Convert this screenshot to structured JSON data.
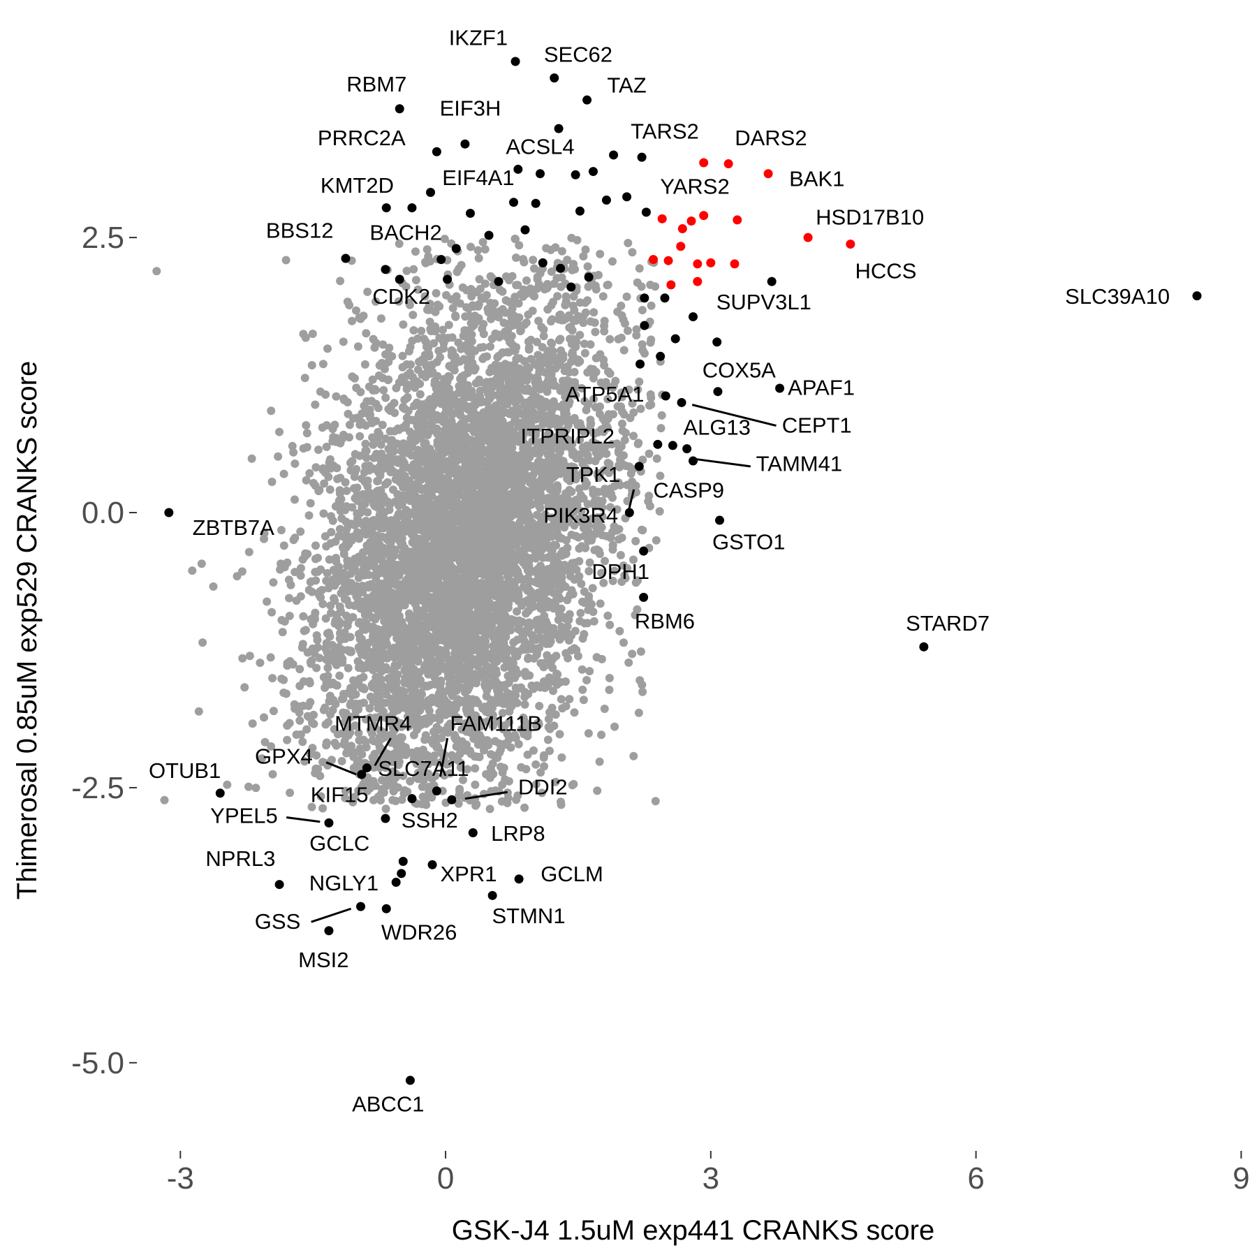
{
  "chart_data": {
    "type": "scatter",
    "xlabel": "GSK-J4 1.5uM exp441 CRANKS score",
    "ylabel": "Thimerosal 0.85uM exp529 CRANKS score",
    "xlim": [
      -3.5,
      9.1
    ],
    "ylim": [
      -5.75,
      4.5
    ],
    "x_ticks": [
      -3,
      0,
      3,
      6,
      9
    ],
    "x_tick_labels": [
      "-3",
      "0",
      "3",
      "6",
      "9"
    ],
    "y_ticks": [
      2.5,
      0.0,
      -2.5,
      -5.0
    ],
    "y_tick_labels": [
      "2.5",
      "0.0",
      "-2.5",
      "-5.0"
    ],
    "grid": false,
    "colors": {
      "background": "#4d4d4d",
      "highlight": "#000000",
      "selected": "#ff0000"
    },
    "background_cloud": {
      "color": "#9e9e9e",
      "description_points": 6000,
      "center": [
        0.2,
        -0.3
      ],
      "spread": [
        0.85,
        1.2
      ],
      "correlation": 0.35
    },
    "selected_points": [
      {
        "x": 2.92,
        "y": 3.18
      },
      {
        "x": 3.2,
        "y": 3.17
      },
      {
        "x": 3.65,
        "y": 3.08
      },
      {
        "x": 4.1,
        "y": 2.5
      },
      {
        "x": 4.58,
        "y": 2.44
      },
      {
        "x": 2.45,
        "y": 2.67
      },
      {
        "x": 2.68,
        "y": 2.58
      },
      {
        "x": 2.78,
        "y": 2.65
      },
      {
        "x": 2.92,
        "y": 2.7
      },
      {
        "x": 3.3,
        "y": 2.66
      },
      {
        "x": 2.66,
        "y": 2.42
      },
      {
        "x": 2.35,
        "y": 2.3
      },
      {
        "x": 2.52,
        "y": 2.29
      },
      {
        "x": 2.85,
        "y": 2.26
      },
      {
        "x": 3.0,
        "y": 2.27
      },
      {
        "x": 3.27,
        "y": 2.26
      },
      {
        "x": 2.55,
        "y": 2.07
      },
      {
        "x": 2.85,
        "y": 2.1
      }
    ],
    "highlight_points": [
      {
        "x": 0.79,
        "y": 4.1
      },
      {
        "x": 1.23,
        "y": 3.95
      },
      {
        "x": 1.6,
        "y": 3.75
      },
      {
        "x": -0.52,
        "y": 3.67
      },
      {
        "x": 1.28,
        "y": 3.49
      },
      {
        "x": 0.22,
        "y": 3.35
      },
      {
        "x": -0.1,
        "y": 3.28
      },
      {
        "x": 1.9,
        "y": 3.25
      },
      {
        "x": 2.22,
        "y": 3.23
      },
      {
        "x": 0.82,
        "y": 3.12
      },
      {
        "x": 1.07,
        "y": 3.08
      },
      {
        "x": 1.47,
        "y": 3.07
      },
      {
        "x": 1.67,
        "y": 3.1
      },
      {
        "x": -0.17,
        "y": 2.91
      },
      {
        "x": -0.67,
        "y": 2.77
      },
      {
        "x": -0.38,
        "y": 2.77
      },
      {
        "x": 0.28,
        "y": 2.72
      },
      {
        "x": 0.77,
        "y": 2.82
      },
      {
        "x": 1.02,
        "y": 2.81
      },
      {
        "x": 1.52,
        "y": 2.74
      },
      {
        "x": 2.27,
        "y": 2.73
      },
      {
        "x": 1.82,
        "y": 2.84
      },
      {
        "x": 2.05,
        "y": 2.87
      },
      {
        "x": -1.13,
        "y": 2.31
      },
      {
        "x": -0.68,
        "y": 2.21
      },
      {
        "x": -0.52,
        "y": 2.12
      },
      {
        "x": -0.05,
        "y": 2.3
      },
      {
        "x": 0.12,
        "y": 2.4
      },
      {
        "x": 0.49,
        "y": 2.52
      },
      {
        "x": 0.9,
        "y": 2.57
      },
      {
        "x": 0.02,
        "y": 2.12
      },
      {
        "x": 0.6,
        "y": 2.1
      },
      {
        "x": 1.1,
        "y": 2.27
      },
      {
        "x": 1.3,
        "y": 2.22
      },
      {
        "x": 1.42,
        "y": 2.05
      },
      {
        "x": 1.62,
        "y": 2.14
      },
      {
        "x": 2.25,
        "y": 1.95
      },
      {
        "x": 3.69,
        "y": 2.1
      },
      {
        "x": 2.48,
        "y": 1.95
      },
      {
        "x": 2.8,
        "y": 1.78
      },
      {
        "x": 3.07,
        "y": 1.55
      },
      {
        "x": 2.25,
        "y": 1.7
      },
      {
        "x": 2.6,
        "y": 1.58
      },
      {
        "x": 2.43,
        "y": 1.42
      },
      {
        "x": 2.2,
        "y": 1.35
      },
      {
        "x": 3.08,
        "y": 1.1
      },
      {
        "x": 3.78,
        "y": 1.13
      },
      {
        "x": 2.49,
        "y": 1.06
      },
      {
        "x": 2.67,
        "y": 1.0
      },
      {
        "x": 2.4,
        "y": 0.62
      },
      {
        "x": 2.57,
        "y": 0.61
      },
      {
        "x": 2.73,
        "y": 0.58
      },
      {
        "x": 2.8,
        "y": 0.47
      },
      {
        "x": 2.19,
        "y": 0.42
      },
      {
        "x": 2.08,
        "y": 0.0
      },
      {
        "x": 3.1,
        "y": -0.07
      },
      {
        "x": 2.24,
        "y": -0.35
      },
      {
        "x": 2.24,
        "y": -0.77
      },
      {
        "x": 5.41,
        "y": -1.22
      },
      {
        "x": 8.5,
        "y": 1.97
      },
      {
        "x": -3.13,
        "y": 0.0
      },
      {
        "x": -2.55,
        "y": -2.55
      },
      {
        "x": -1.32,
        "y": -2.82
      },
      {
        "x": -0.68,
        "y": -2.78
      },
      {
        "x": -0.95,
        "y": -2.38
      },
      {
        "x": -0.89,
        "y": -2.32
      },
      {
        "x": -0.38,
        "y": -2.6
      },
      {
        "x": -0.1,
        "y": -2.53
      },
      {
        "x": 0.07,
        "y": -2.61
      },
      {
        "x": 0.31,
        "y": -2.91
      },
      {
        "x": -0.48,
        "y": -3.17
      },
      {
        "x": -0.15,
        "y": -3.2
      },
      {
        "x": -0.5,
        "y": -3.28
      },
      {
        "x": -0.56,
        "y": -3.36
      },
      {
        "x": 0.83,
        "y": -3.33
      },
      {
        "x": 0.53,
        "y": -3.48
      },
      {
        "x": -1.88,
        "y": -3.38
      },
      {
        "x": -0.96,
        "y": -3.58
      },
      {
        "x": -0.67,
        "y": -3.6
      },
      {
        "x": -1.32,
        "y": -3.8
      },
      {
        "x": -0.4,
        "y": -5.16
      }
    ],
    "labels": [
      {
        "text": "IKZF1",
        "x": 0.37,
        "y": 4.3
      },
      {
        "text": "SEC62",
        "x": 1.5,
        "y": 4.15
      },
      {
        "text": "RBM7",
        "x": -0.78,
        "y": 3.88
      },
      {
        "text": "TAZ",
        "x": 2.05,
        "y": 3.87
      },
      {
        "text": "EIF3H",
        "x": 0.28,
        "y": 3.66
      },
      {
        "text": "PRRC2A",
        "x": -0.95,
        "y": 3.39
      },
      {
        "text": "TARS2",
        "x": 2.48,
        "y": 3.45
      },
      {
        "text": "DARS2",
        "x": 3.68,
        "y": 3.39
      },
      {
        "text": "ACSL4",
        "x": 1.07,
        "y": 3.31
      },
      {
        "text": "EIF4A1",
        "x": 0.37,
        "y": 3.03
      },
      {
        "text": "BAK1",
        "x": 4.2,
        "y": 3.02
      },
      {
        "text": "KMT2D",
        "x": -1.0,
        "y": 2.96
      },
      {
        "text": "YARS2",
        "x": 2.82,
        "y": 2.95
      },
      {
        "text": "HSD17B10",
        "x": 4.8,
        "y": 2.67
      },
      {
        "text": "BBS12",
        "x": -1.65,
        "y": 2.55
      },
      {
        "text": "BACH2",
        "x": -0.45,
        "y": 2.53
      },
      {
        "text": "HCCS",
        "x": 4.98,
        "y": 2.18
      },
      {
        "text": "CDK2",
        "x": -0.5,
        "y": 1.95
      },
      {
        "text": "SUPV3L1",
        "x": 3.6,
        "y": 1.9
      },
      {
        "text": "SLC39A10",
        "x": 7.6,
        "y": 1.95
      },
      {
        "text": "COX5A",
        "x": 3.32,
        "y": 1.28
      },
      {
        "text": "APAF1",
        "x": 4.25,
        "y": 1.12
      },
      {
        "text": "ATP5A1",
        "x": 1.8,
        "y": 1.06
      },
      {
        "text": "CEPT1",
        "x": 4.2,
        "y": 0.78
      },
      {
        "text": "ALG13",
        "x": 3.07,
        "y": 0.76
      },
      {
        "text": "ITPRIPL2",
        "x": 1.38,
        "y": 0.68
      },
      {
        "text": "TAMM41",
        "x": 4.0,
        "y": 0.43
      },
      {
        "text": "TPK1",
        "x": 1.67,
        "y": 0.33
      },
      {
        "text": "CASP9",
        "x": 2.75,
        "y": 0.19
      },
      {
        "text": "PIK3R4",
        "x": 1.53,
        "y": -0.04
      },
      {
        "text": "ZBTB7A",
        "x": -2.4,
        "y": -0.15
      },
      {
        "text": "GSTO1",
        "x": 3.43,
        "y": -0.28
      },
      {
        "text": "DPH1",
        "x": 1.98,
        "y": -0.55
      },
      {
        "text": "RBM6",
        "x": 2.48,
        "y": -1.0
      },
      {
        "text": "STARD7",
        "x": 5.68,
        "y": -1.02
      },
      {
        "text": "MTMR4",
        "x": -0.82,
        "y": -1.93
      },
      {
        "text": "FAM111B",
        "x": 0.57,
        "y": -1.93
      },
      {
        "text": "GPX4",
        "x": -1.83,
        "y": -2.23
      },
      {
        "text": "SLC7A11",
        "x": -0.25,
        "y": -2.34
      },
      {
        "text": "OTUB1",
        "x": -2.95,
        "y": -2.36
      },
      {
        "text": "DDI2",
        "x": 1.1,
        "y": -2.51
      },
      {
        "text": "KIF15",
        "x": -1.2,
        "y": -2.58
      },
      {
        "text": "YPEL5",
        "x": -2.28,
        "y": -2.77
      },
      {
        "text": "SSH2",
        "x": -0.18,
        "y": -2.81
      },
      {
        "text": "LRP8",
        "x": 0.82,
        "y": -2.93
      },
      {
        "text": "GCLC",
        "x": -1.2,
        "y": -3.02
      },
      {
        "text": "NPRL3",
        "x": -2.32,
        "y": -3.16
      },
      {
        "text": "XPR1",
        "x": 0.26,
        "y": -3.3
      },
      {
        "text": "GCLM",
        "x": 1.43,
        "y": -3.3
      },
      {
        "text": "NGLY1",
        "x": -1.15,
        "y": -3.38
      },
      {
        "text": "GSS",
        "x": -1.9,
        "y": -3.73
      },
      {
        "text": "STMN1",
        "x": 0.94,
        "y": -3.68
      },
      {
        "text": "WDR26",
        "x": -0.3,
        "y": -3.83
      },
      {
        "text": "MSI2",
        "x": -1.38,
        "y": -4.08
      },
      {
        "text": "ABCC1",
        "x": -0.65,
        "y": -5.39
      }
    ],
    "leader_lines": [
      {
        "from": [
          2.79,
          0.98
        ],
        "to": [
          3.74,
          0.79
        ]
      },
      {
        "from": [
          2.79,
          0.49
        ],
        "to": [
          3.45,
          0.42
        ]
      },
      {
        "from": [
          2.13,
          0.21
        ],
        "to": [
          2.06,
          -0.02
        ]
      },
      {
        "from": [
          -0.62,
          -2.05
        ],
        "to": [
          -0.8,
          -2.3
        ]
      },
      {
        "from": [
          0.02,
          -2.05
        ],
        "to": [
          -0.06,
          -2.4
        ]
      },
      {
        "from": [
          -1.35,
          -2.27
        ],
        "to": [
          -1.01,
          -2.38
        ]
      },
      {
        "from": [
          0.22,
          -2.6
        ],
        "to": [
          0.7,
          -2.54
        ]
      },
      {
        "from": [
          -1.8,
          -2.77
        ],
        "to": [
          -1.42,
          -2.81
        ]
      },
      {
        "from": [
          -1.52,
          -3.72
        ],
        "to": [
          -1.07,
          -3.6
        ]
      }
    ]
  }
}
